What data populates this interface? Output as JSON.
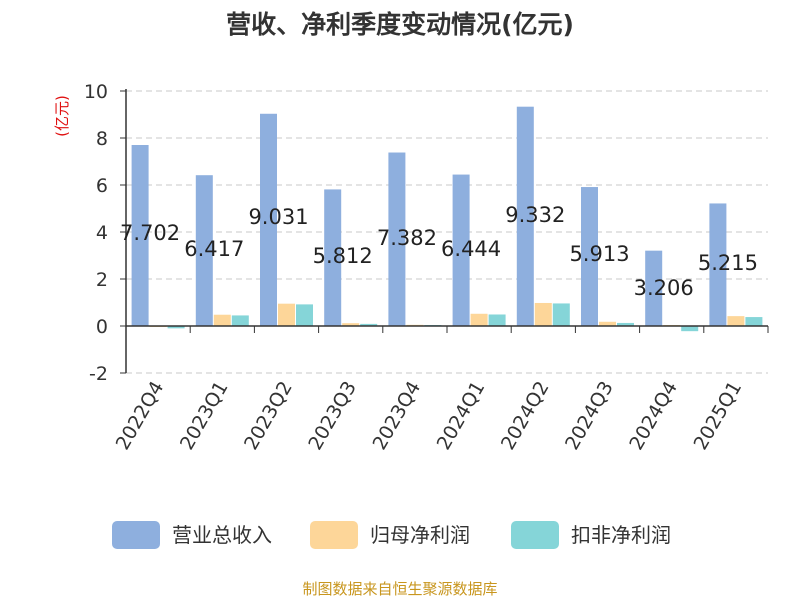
{
  "chart_data": {
    "type": "bar",
    "title": "营收、净利季度变动情况(亿元)",
    "ylabel": "(亿元)",
    "ylim": [
      -2,
      10
    ],
    "yticks": [
      -2,
      0,
      2,
      4,
      6,
      8,
      10
    ],
    "grid": true,
    "legend_position": "bottom",
    "categories": [
      "2022Q4",
      "2023Q1",
      "2023Q2",
      "2023Q3",
      "2023Q4",
      "2024Q1",
      "2024Q2",
      "2024Q3",
      "2024Q4",
      "2025Q1"
    ],
    "series": [
      {
        "name": "营业总收入",
        "color": "#8eafde",
        "values": [
          7.702,
          6.417,
          9.031,
          5.812,
          7.382,
          6.444,
          9.332,
          5.913,
          3.206,
          5.215
        ]
      },
      {
        "name": "归母净利润",
        "color": "#fdd699",
        "values": [
          -0.02,
          0.48,
          0.95,
          0.12,
          0.05,
          0.52,
          0.98,
          0.18,
          0.03,
          0.42
        ]
      },
      {
        "name": "扣非净利润",
        "color": "#85d5d8",
        "values": [
          -0.1,
          0.45,
          0.92,
          0.09,
          0.02,
          0.49,
          0.96,
          0.13,
          -0.22,
          0.38
        ]
      }
    ],
    "data_labels": [
      "7.702",
      "6.417",
      "9.031",
      "5.812",
      "7.382",
      "6.444",
      "9.332",
      "5.913",
      "3.206",
      "5.215"
    ]
  },
  "source_text": "制图数据来自恒生聚源数据库"
}
